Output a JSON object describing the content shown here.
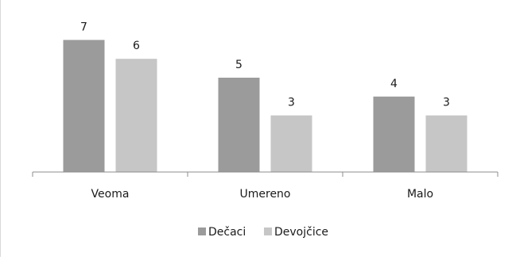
{
  "chart_data": {
    "type": "bar",
    "categories": [
      "Veoma",
      "Umereno",
      "Malo"
    ],
    "series": [
      {
        "name": "Dečaci",
        "values": [
          7,
          5,
          4
        ],
        "color": "#9b9b9b"
      },
      {
        "name": "Devojčice",
        "values": [
          6,
          3,
          3
        ],
        "color": "#c6c6c6"
      }
    ],
    "ylim": [
      0,
      7
    ],
    "grid": false,
    "data_labels": true,
    "legend_position": "bottom",
    "axis_color": "#8c8c8c",
    "text_color": "#1a1a1a"
  }
}
